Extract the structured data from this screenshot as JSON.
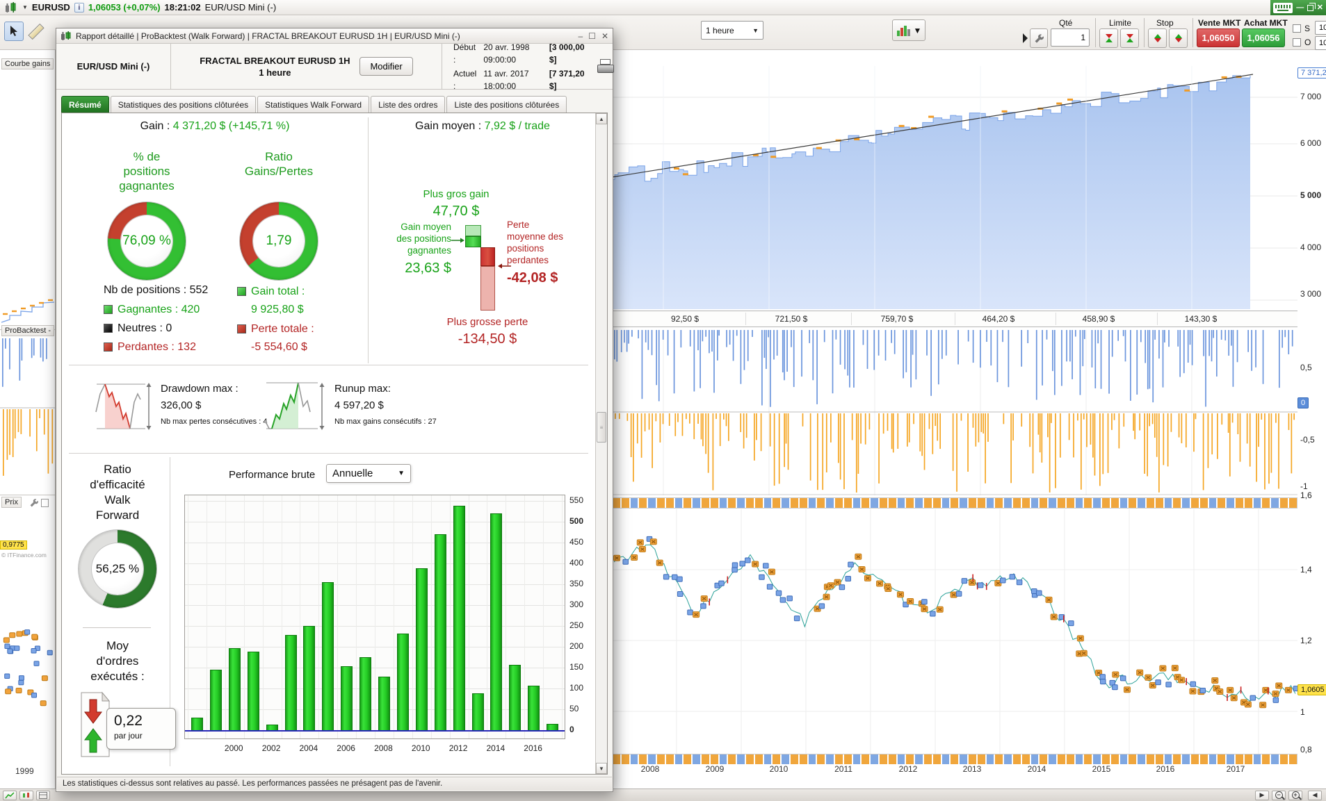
{
  "topbar": {
    "symbol": "EURUSD",
    "quote": "1,06053 (+0,07%)",
    "time": "18:21:02",
    "instrument": "EUR/USD Mini (-)"
  },
  "toolbar": {
    "timeframe": "1 heure",
    "trade": {
      "qty_label": "Qté",
      "qty_value": "1",
      "limite_label": "Limite",
      "stop_label": "Stop",
      "vente_label": "Vente MKT",
      "achat_label": "Achat MKT",
      "vente_price": "1,06050",
      "achat_price": "1,06056",
      "s_label": "S",
      "o_label": "O",
      "s_value": "10",
      "o_value": "10"
    }
  },
  "left_rail": {
    "courbe_gains": "Courbe gains",
    "probacktest": "ProBacktest -",
    "prix": "Prix",
    "price_tag": "0,9775",
    "copyright": "© ITFinance.com",
    "year_start": "1999"
  },
  "bg_charts": {
    "equity_current": "7 371,2",
    "equity_ticks": [
      "7 000",
      "6 000",
      "5 000",
      "4 000",
      "3 000"
    ],
    "period_values": [
      "92,50 $",
      "721,50 $",
      "759,70 $",
      "464,20 $",
      "458,90 $",
      "143,30 $"
    ],
    "osc_ticks": [
      "0,5",
      "-0,5",
      "-1"
    ],
    "osc_zero": "0",
    "price_ticks": [
      "1,6",
      "1,4",
      "1,2",
      "1",
      "0,8"
    ],
    "price_current": "1,0605",
    "years": [
      "2008",
      "2009",
      "2010",
      "2011",
      "2012",
      "2013",
      "2014",
      "2015",
      "2016",
      "2017"
    ]
  },
  "dialog": {
    "title": "Rapport détaillé | ProBacktest (Walk Forward) | FRACTAL BREAKOUT EURUSD 1H | EUR/USD Mini (-)",
    "header": {
      "instrument": "EUR/USD Mini (-)",
      "strategy": "FRACTAL BREAKOUT EURUSD 1H",
      "timeframe": "1 heure",
      "modify": "Modifier",
      "debut_label": "Début :",
      "debut_date": "20 avr. 1998 09:00:00",
      "debut_capital": "[3 000,00 $]",
      "actuel_label": "Actuel :",
      "actuel_date": "11 avr. 2017 18:00:00",
      "actuel_capital": "[7 371,20 $]"
    },
    "tabs": [
      "Résumé",
      "Statistiques des positions clôturées",
      "Statistiques Walk Forward",
      "Liste des ordres",
      "Liste des positions clôturées"
    ],
    "active_tab": "Résumé",
    "summary": {
      "gain_label": "Gain :",
      "gain_value": "4 371,20 $ (+145,71 %)",
      "gain_moyen_label": "Gain moyen :",
      "gain_moyen_value": "7,92 $ / trade",
      "donut_positions": {
        "title": "% de\npositions\ngagnantes",
        "value": "76,09 %",
        "green_pct": 76.09
      },
      "donut_ratio": {
        "title": "Ratio\nGains/Pertes",
        "value": "1,79",
        "green_pct": 64.12
      },
      "nb_positions": "Nb de positions : 552",
      "legend_positions": [
        {
          "label": "Gagnantes : 420",
          "sq": "linear-gradient(135deg,#6fe06f,#1fa01f)",
          "color": "#17a217"
        },
        {
          "label": "Neutres : 0",
          "sq": "linear-gradient(135deg,#555,#000)",
          "color": "#111111"
        },
        {
          "label": "Perdantes : 132",
          "sq": "linear-gradient(135deg,#e06050,#a82818)",
          "color": "#b32424"
        }
      ],
      "legend_totals": [
        {
          "label": "Gain total :",
          "value": "9 925,80 $",
          "sq": "linear-gradient(135deg,#6fe06f,#1fa01f)",
          "color": "#17a217"
        },
        {
          "label": "Perte totale :",
          "value": "-5 554,60 $",
          "sq": "linear-gradient(135deg,#e06050,#a82818)",
          "color": "#b32424"
        }
      ],
      "gains_diagram": {
        "max_gain_label": "Plus gros gain",
        "max_gain": "47,70 $",
        "avg_gain_label": "Gain moyen\ndes positions\ngagnantes",
        "avg_gain": "23,63 $",
        "avg_loss_label": "Perte\nmoyenne des\npositions\nperdantes",
        "avg_loss": "-42,08 $",
        "max_loss_label": "Plus grosse perte",
        "max_loss": "-134,50 $"
      },
      "drawdown": {
        "label": "Drawdown max :",
        "value": "326,00 $",
        "note": "Nb max pertes consécutives : 4"
      },
      "runup": {
        "label": "Runup max:",
        "value": "4 597,20 $",
        "note": "Nb max gains consécutifs : 27"
      },
      "walk_forward": {
        "title": "Ratio\nd'efficacité\nWalk\nForward",
        "value": "56,25 %",
        "pct": 56.25
      },
      "orders": {
        "title": "Moy\nd'ordres\nexécutés :",
        "value": "0,22",
        "unit": "par jour"
      },
      "perf_title": "Performance brute",
      "perf_period": "Annuelle"
    },
    "footer": "Les statistiques ci-dessus sont relatives au passé. Les performances passées ne présagent pas de l'avenir."
  },
  "chart_data": [
    {
      "type": "bar",
      "title": "Performance brute",
      "period": "Annuelle",
      "categories": [
        "1998",
        "1999",
        "2000",
        "2001",
        "2002",
        "2003",
        "2004",
        "2005",
        "2006",
        "2007",
        "2008",
        "2009",
        "2010",
        "2011",
        "2012",
        "2013",
        "2014",
        "2015",
        "2016",
        "2017"
      ],
      "values": [
        30,
        145,
        197,
        188,
        13,
        228,
        250,
        355,
        153,
        175,
        128,
        232,
        388,
        470,
        538,
        88,
        520,
        157,
        107,
        15
      ],
      "ylim": [
        0,
        550
      ],
      "yticks": [
        0,
        50,
        100,
        150,
        200,
        250,
        300,
        350,
        400,
        450,
        500,
        550
      ],
      "xtick_labels": [
        "2000",
        "2002",
        "2004",
        "2006",
        "2008",
        "2010",
        "2012",
        "2014",
        "2016"
      ],
      "bar_color": "#2bd12b",
      "grid": true,
      "legend_position": "none"
    },
    {
      "type": "area",
      "title": "Courbe de gains (equity)",
      "x_range": [
        "1999",
        "2017"
      ],
      "y_range": [
        3000,
        7371.2
      ],
      "current_value": 7371.2,
      "yticks": [
        7000,
        6000,
        5000,
        4000,
        3000
      ]
    },
    {
      "type": "pie",
      "title": "% de positions gagnantes",
      "slices": [
        {
          "label": "Gagnantes",
          "value": 76.09
        },
        {
          "label": "Perdantes",
          "value": 23.91
        }
      ]
    },
    {
      "type": "pie",
      "title": "Ratio Gains/Pertes",
      "slices": [
        {
          "label": "Gain total",
          "value": 9925.8
        },
        {
          "label": "Perte totale",
          "value": 5554.6
        }
      ]
    }
  ]
}
